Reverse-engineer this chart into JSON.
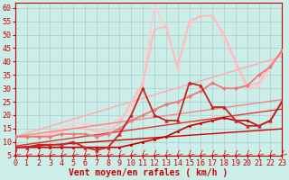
{
  "bg_color": "#cceee8",
  "grid_color": "#aacccc",
  "xlabel": "Vent moyen/en rafales ( km/h )",
  "x_ticks": [
    0,
    1,
    2,
    3,
    4,
    5,
    6,
    7,
    8,
    9,
    10,
    11,
    12,
    13,
    14,
    15,
    16,
    17,
    18,
    19,
    20,
    21,
    22,
    23
  ],
  "ylim": [
    5,
    62
  ],
  "xlim": [
    0,
    23
  ],
  "y_ticks": [
    5,
    10,
    15,
    20,
    25,
    30,
    35,
    40,
    45,
    50,
    55,
    60
  ],
  "lines": [
    {
      "x": [
        0,
        1,
        2,
        3,
        4,
        5,
        6,
        7,
        8,
        9,
        10,
        11,
        12,
        13,
        14,
        15,
        16,
        17,
        18,
        19,
        20,
        21,
        22,
        23
      ],
      "y": [
        8.0,
        8.3,
        8.6,
        8.9,
        9.2,
        9.5,
        9.8,
        10.1,
        10.4,
        10.7,
        11.0,
        11.3,
        11.6,
        11.9,
        12.2,
        12.5,
        12.8,
        13.1,
        13.4,
        13.7,
        14.0,
        14.3,
        14.6,
        14.9
      ],
      "color": "#cc0000",
      "lw": 1.0,
      "marker": null,
      "ms": 0,
      "zorder": 5
    },
    {
      "x": [
        0,
        1,
        2,
        3,
        4,
        5,
        6,
        7,
        8,
        9,
        10,
        11,
        12,
        13,
        14,
        15,
        16,
        17,
        18,
        19,
        20,
        21,
        22,
        23
      ],
      "y": [
        8.5,
        9.1,
        9.7,
        10.3,
        10.9,
        11.5,
        12.1,
        12.7,
        13.3,
        13.9,
        14.5,
        15.1,
        15.7,
        16.3,
        16.9,
        17.5,
        18.1,
        18.7,
        19.3,
        19.9,
        20.5,
        21.1,
        21.7,
        22.3
      ],
      "color": "#dd3333",
      "lw": 1.0,
      "marker": null,
      "ms": 0,
      "zorder": 5
    },
    {
      "x": [
        0,
        1,
        2,
        3,
        4,
        5,
        6,
        7,
        8,
        9,
        10,
        11,
        12,
        13,
        14,
        15,
        16,
        17,
        18,
        19,
        20,
        21,
        22,
        23
      ],
      "y": [
        12,
        12.6,
        13.2,
        13.8,
        14.4,
        15.0,
        15.6,
        16.2,
        16.8,
        17.4,
        18.0,
        18.6,
        19.2,
        19.8,
        20.4,
        21.0,
        21.6,
        22.2,
        22.8,
        23.4,
        24.0,
        24.6,
        25.2,
        25.8
      ],
      "color": "#ee8888",
      "lw": 1.0,
      "marker": null,
      "ms": 0,
      "zorder": 4
    },
    {
      "x": [
        0,
        1,
        2,
        3,
        4,
        5,
        6,
        7,
        8,
        9,
        10,
        11,
        12,
        13,
        14,
        15,
        16,
        17,
        18,
        19,
        20,
        21,
        22,
        23
      ],
      "y": [
        12,
        13.3,
        14.6,
        15.9,
        17.2,
        18.5,
        19.8,
        21.1,
        22.4,
        23.7,
        25.0,
        26.3,
        27.6,
        28.9,
        30.2,
        31.5,
        32.8,
        34.1,
        35.4,
        36.7,
        38.0,
        39.3,
        40.6,
        41.9
      ],
      "color": "#ffaaaa",
      "lw": 1.0,
      "marker": null,
      "ms": 0,
      "zorder": 3
    },
    {
      "x": [
        0,
        1,
        2,
        3,
        4,
        5,
        6,
        7,
        8,
        9,
        10,
        11,
        12,
        13,
        14,
        15,
        16,
        17,
        18,
        19,
        20,
        21,
        22,
        23
      ],
      "y": [
        8,
        8,
        8,
        8,
        8,
        8,
        8,
        8,
        8,
        8,
        9,
        10,
        11,
        12,
        14,
        16,
        17,
        18,
        19,
        18,
        18,
        16,
        18,
        25
      ],
      "color": "#cc0000",
      "lw": 1.2,
      "marker": "s",
      "ms": 2.0,
      "zorder": 6
    },
    {
      "x": [
        0,
        1,
        2,
        3,
        4,
        5,
        6,
        7,
        8,
        9,
        10,
        11,
        12,
        13,
        14,
        15,
        16,
        17,
        18,
        19,
        20,
        21,
        22,
        23
      ],
      "y": [
        8,
        8,
        9,
        9,
        9,
        10,
        8,
        7,
        8,
        13,
        20,
        30,
        20,
        18,
        18,
        32,
        31,
        23,
        23,
        18,
        16,
        16,
        18,
        25
      ],
      "color": "#cc2222",
      "lw": 1.3,
      "marker": "^",
      "ms": 2.5,
      "zorder": 6
    },
    {
      "x": [
        0,
        1,
        2,
        3,
        4,
        5,
        6,
        7,
        8,
        9,
        10,
        11,
        12,
        13,
        14,
        15,
        16,
        17,
        18,
        19,
        20,
        21,
        22,
        23
      ],
      "y": [
        12,
        12,
        12,
        12,
        13,
        13,
        13,
        12,
        13,
        15,
        18,
        20,
        22,
        24,
        25,
        27,
        29,
        32,
        30,
        30,
        31,
        35,
        38,
        44
      ],
      "color": "#ee7777",
      "lw": 1.3,
      "marker": "D",
      "ms": 2.0,
      "zorder": 5
    },
    {
      "x": [
        0,
        1,
        2,
        3,
        4,
        5,
        6,
        7,
        8,
        9,
        10,
        11,
        12,
        13,
        14,
        15,
        16,
        17,
        18,
        19,
        20,
        21,
        22,
        23
      ],
      "y": [
        12,
        12,
        12,
        13,
        14,
        15,
        15,
        14,
        14,
        17,
        25,
        32,
        52,
        53,
        38,
        55,
        57,
        57,
        50,
        40,
        31,
        32,
        39,
        44
      ],
      "color": "#ffbbbb",
      "lw": 1.3,
      "marker": "+",
      "ms": 3.0,
      "zorder": 3
    },
    {
      "x": [
        0,
        1,
        2,
        3,
        4,
        5,
        6,
        7,
        8,
        9,
        10,
        11,
        12,
        13,
        14,
        15,
        16,
        17,
        18,
        19,
        20,
        21,
        22,
        23
      ],
      "y": [
        12,
        12,
        13,
        14,
        15,
        17,
        17,
        16,
        16,
        19,
        22,
        32,
        60,
        53,
        37,
        54,
        57,
        57,
        49,
        39,
        30,
        31,
        38,
        44
      ],
      "color": "#ffcccc",
      "lw": 1.3,
      "marker": "x",
      "ms": 3.0,
      "zorder": 2
    }
  ],
  "arrow_color": "#cc0000",
  "xlabel_color": "#cc0000",
  "xlabel_fontsize": 7,
  "tick_fontsize": 6,
  "tick_color": "#cc0000",
  "spine_color": "#cc0000"
}
